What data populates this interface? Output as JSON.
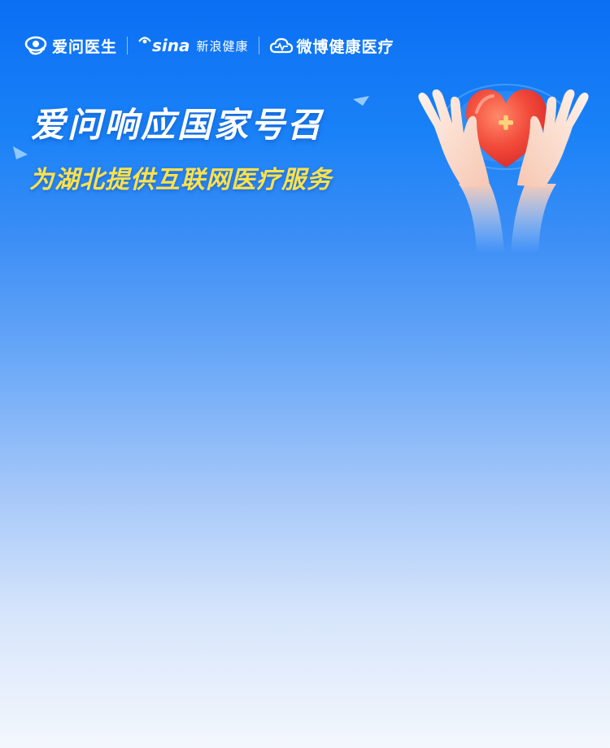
{
  "logos": {
    "aiwen": {
      "name": "爱问医生",
      "icon": "eye-stethoscope-icon"
    },
    "sina": {
      "wordmark": "sina",
      "name": "新浪健康",
      "icon": "sina-eye-icon"
    },
    "weibo": {
      "name": "微博健康医疗",
      "icon": "cloud-heartbeat-icon"
    }
  },
  "headline": "爱问响应国家号召",
  "subheadline": "为湖北提供互联网医疗服务",
  "illustration": {
    "icon": "hands-holding-heart-icon"
  },
  "colors": {
    "background_top": "#0a6ff4",
    "background_bottom": "#f4f7fd",
    "headline": "#ffffff",
    "subheadline": "#fde24a",
    "heart": "#f0463a",
    "cross": "#fcd27a"
  }
}
